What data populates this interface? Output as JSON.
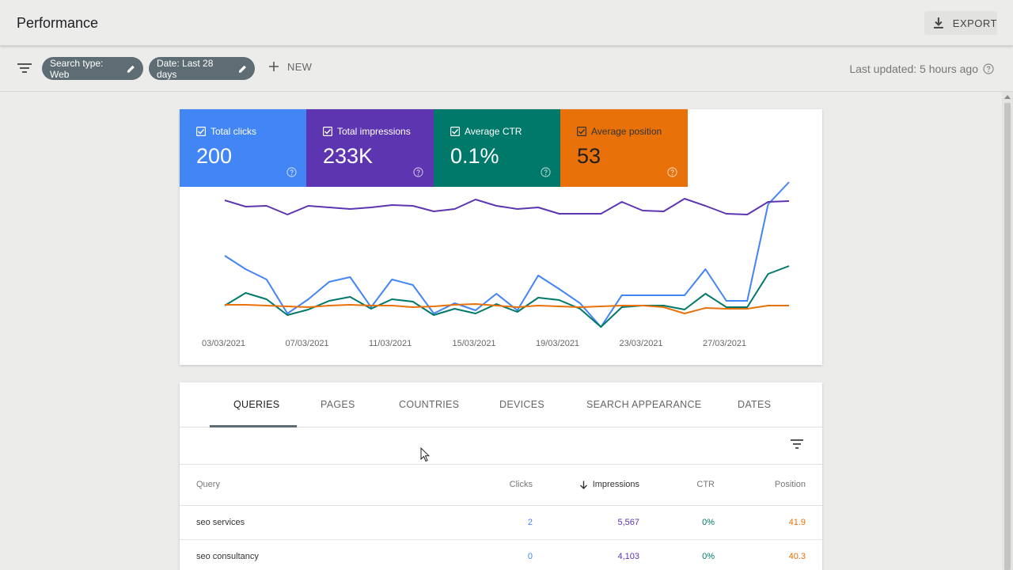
{
  "header": {
    "title": "Performance",
    "export_label": "EXPORT"
  },
  "filters": {
    "search_type": "Search type: Web",
    "date": "Date: Last 28 days",
    "new_label": "NEW",
    "last_updated": "Last updated: 5 hours ago"
  },
  "metrics": [
    {
      "label": "Total clicks",
      "value": "200",
      "color": "#4285f4"
    },
    {
      "label": "Total impressions",
      "value": "233K",
      "color": "#5e35b1"
    },
    {
      "label": "Average CTR",
      "value": "0.1%",
      "color": "#00796b"
    },
    {
      "label": "Average position",
      "value": "53",
      "color": "#e8710a"
    }
  ],
  "chart_data": {
    "type": "line",
    "x_tick_labels": [
      "03/03/2021",
      "07/03/2021",
      "11/03/2021",
      "15/03/2021",
      "19/03/2021",
      "23/03/2021",
      "27/03/2021"
    ],
    "grid": false,
    "series": [
      {
        "name": "Total clicks",
        "color": "#4285f4",
        "values": [
          0.85,
          0.68,
          0.55,
          0.12,
          0.3,
          0.52,
          0.58,
          0.2,
          0.55,
          0.48,
          0.12,
          0.25,
          0.16,
          0.37,
          0.16,
          0.6,
          0.43,
          0.25,
          -0.05,
          0.35,
          0.35,
          0.35,
          0.35,
          0.68,
          0.28,
          0.28,
          1.5,
          1.78
        ]
      },
      {
        "name": "Total impressions",
        "color": "#5e35b1",
        "values": [
          1.55,
          1.47,
          1.48,
          1.37,
          1.48,
          1.46,
          1.44,
          1.46,
          1.49,
          1.48,
          1.41,
          1.44,
          1.56,
          1.48,
          1.44,
          1.46,
          1.38,
          1.38,
          1.38,
          1.53,
          1.42,
          1.41,
          1.57,
          1.48,
          1.38,
          1.37,
          1.53,
          1.54
        ]
      },
      {
        "name": "Average CTR",
        "color": "#00796b",
        "values": [
          0.22,
          0.38,
          0.3,
          0.1,
          0.17,
          0.28,
          0.33,
          0.18,
          0.3,
          0.27,
          0.1,
          0.18,
          0.12,
          0.24,
          0.14,
          0.32,
          0.29,
          0.18,
          -0.05,
          0.2,
          0.22,
          0.22,
          0.17,
          0.37,
          0.2,
          0.2,
          0.62,
          0.72
        ]
      },
      {
        "name": "Average position",
        "color": "#e8710a",
        "values": [
          0.23,
          0.23,
          0.22,
          0.21,
          0.2,
          0.22,
          0.23,
          0.22,
          0.22,
          0.2,
          0.21,
          0.23,
          0.24,
          0.22,
          0.2,
          0.22,
          0.21,
          0.2,
          0.21,
          0.22,
          0.22,
          0.2,
          0.12,
          0.19,
          0.18,
          0.18,
          0.22,
          0.22
        ]
      }
    ]
  },
  "table": {
    "tabs": [
      "QUERIES",
      "PAGES",
      "COUNTRIES",
      "DEVICES",
      "SEARCH APPEARANCE",
      "DATES"
    ],
    "columns": {
      "query": "Query",
      "clicks": "Clicks",
      "impressions": "Impressions",
      "ctr": "CTR",
      "position": "Position"
    },
    "rows": [
      {
        "query": "seo services",
        "clicks": "2",
        "impressions": "5,567",
        "ctr": "0%",
        "position": "41.9"
      },
      {
        "query": "seo consultancy",
        "clicks": "0",
        "impressions": "4,103",
        "ctr": "0%",
        "position": "40.3"
      }
    ]
  }
}
